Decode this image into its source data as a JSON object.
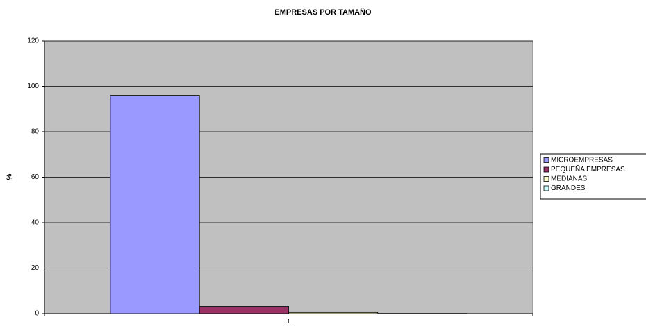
{
  "chart_data": {
    "type": "bar",
    "title": "EMPRESAS  POR TAMAÑO",
    "y_label": "%",
    "categories": [
      "1"
    ],
    "series": [
      {
        "name": "MICROEMPRESAS",
        "color": "#9999ff",
        "values": [
          96
        ]
      },
      {
        "name": "PEQUEÑA EMPRESAS",
        "color": "#993366",
        "values": [
          3.2
        ]
      },
      {
        "name": "MEDIANAS",
        "color": "#ffffcc",
        "values": [
          0.5
        ]
      },
      {
        "name": "GRANDES",
        "color": "#ccffff",
        "values": [
          0.1
        ]
      }
    ],
    "ylim": [
      0,
      120
    ],
    "yticks": [
      0,
      20,
      40,
      60,
      80,
      100,
      120
    ],
    "grid": true,
    "legend": "right",
    "plot_background": "#c0c0c0"
  }
}
